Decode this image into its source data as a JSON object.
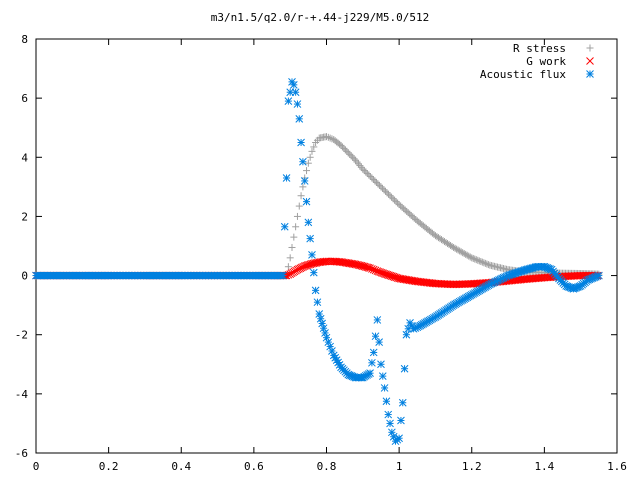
{
  "chart_data": {
    "type": "scatter",
    "title": "m3/n1.5/q2.0/r-+.44-j229/M5.0/512",
    "xlabel": "",
    "ylabel": "",
    "xlim": [
      0,
      1.6
    ],
    "ylim": [
      -6,
      8
    ],
    "x_ticks": [
      "0",
      "0.2",
      "0.4",
      "0.6",
      "0.8",
      "1",
      "1.2",
      "1.4",
      "1.6"
    ],
    "y_ticks": [
      "-6",
      "-4",
      "-2",
      "0",
      "2",
      "4",
      "6",
      "8"
    ],
    "grid": false,
    "legend_position": "top-right",
    "series": [
      {
        "name": "R stress",
        "marker": "plus",
        "color": "#a0a0a0",
        "x": [
          0.0,
          0.1,
          0.2,
          0.3,
          0.4,
          0.5,
          0.6,
          0.69,
          0.7,
          0.71,
          0.72,
          0.73,
          0.74,
          0.75,
          0.76,
          0.77,
          0.78,
          0.8,
          0.82,
          0.84,
          0.86,
          0.88,
          0.9,
          0.95,
          1.0,
          1.05,
          1.1,
          1.15,
          1.2,
          1.25,
          1.3,
          1.35,
          1.4,
          1.45,
          1.5,
          1.55
        ],
        "y": [
          0,
          0,
          0,
          0,
          0,
          0,
          0,
          0,
          0.6,
          1.3,
          2.0,
          2.7,
          3.3,
          3.8,
          4.2,
          4.5,
          4.65,
          4.7,
          4.6,
          4.4,
          4.15,
          3.9,
          3.6,
          3.0,
          2.4,
          1.85,
          1.35,
          0.95,
          0.6,
          0.35,
          0.2,
          0.12,
          0.1,
          0.08,
          0.07,
          0.05
        ]
      },
      {
        "name": "G work",
        "marker": "cross",
        "color": "#ff0000",
        "x": [
          0.0,
          0.1,
          0.2,
          0.3,
          0.4,
          0.5,
          0.6,
          0.69,
          0.7,
          0.72,
          0.74,
          0.76,
          0.78,
          0.8,
          0.82,
          0.84,
          0.86,
          0.88,
          0.9,
          0.92,
          0.94,
          0.96,
          0.98,
          1.0,
          1.05,
          1.1,
          1.15,
          1.2,
          1.25,
          1.3,
          1.35,
          1.4,
          1.45,
          1.5,
          1.55
        ],
        "y": [
          0,
          0,
          0,
          0,
          0,
          0,
          0,
          0,
          0.05,
          0.2,
          0.32,
          0.4,
          0.45,
          0.48,
          0.48,
          0.46,
          0.42,
          0.38,
          0.32,
          0.25,
          0.15,
          0.06,
          -0.02,
          -0.1,
          -0.2,
          -0.27,
          -0.3,
          -0.28,
          -0.24,
          -0.18,
          -0.12,
          -0.07,
          -0.03,
          0.0,
          0.0
        ]
      },
      {
        "name": "Acoustic flux",
        "marker": "star",
        "color": "#0080e0",
        "x": [
          0.0,
          0.1,
          0.2,
          0.3,
          0.4,
          0.5,
          0.6,
          0.68,
          0.69,
          0.695,
          0.7,
          0.705,
          0.71,
          0.715,
          0.72,
          0.725,
          0.73,
          0.74,
          0.75,
          0.76,
          0.77,
          0.78,
          0.8,
          0.82,
          0.84,
          0.86,
          0.88,
          0.9,
          0.92,
          0.93,
          0.94,
          0.95,
          0.96,
          0.97,
          0.98,
          0.99,
          1.0,
          1.01,
          1.02,
          1.03,
          1.04,
          1.05,
          1.1,
          1.15,
          1.2,
          1.25,
          1.3,
          1.35,
          1.38,
          1.4,
          1.42,
          1.44,
          1.46,
          1.48,
          1.5,
          1.52,
          1.55
        ],
        "y": [
          0,
          0,
          0,
          0,
          0,
          0,
          0,
          0,
          3.3,
          5.9,
          6.2,
          6.55,
          6.45,
          6.2,
          5.8,
          5.3,
          4.5,
          3.2,
          1.8,
          0.7,
          -0.5,
          -1.3,
          -2.1,
          -2.7,
          -3.1,
          -3.35,
          -3.45,
          -3.45,
          -3.3,
          -2.6,
          -1.5,
          -3.0,
          -3.8,
          -4.7,
          -5.3,
          -5.6,
          -5.5,
          -4.3,
          -2.0,
          -1.6,
          -1.8,
          -1.75,
          -1.4,
          -1.0,
          -0.65,
          -0.3,
          0.0,
          0.2,
          0.3,
          0.3,
          0.2,
          -0.1,
          -0.35,
          -0.45,
          -0.35,
          -0.15,
          0.0
        ]
      }
    ]
  }
}
